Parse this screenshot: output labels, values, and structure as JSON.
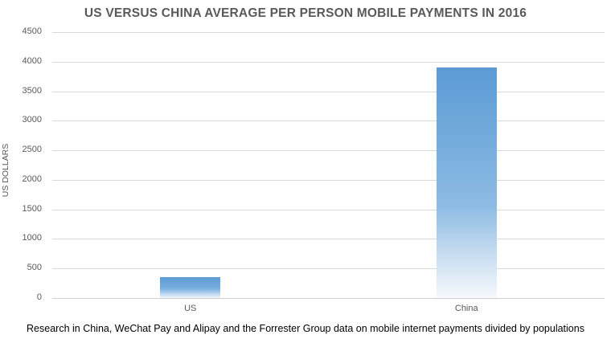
{
  "chart_data": {
    "type": "bar",
    "title": "US VERSUS CHINA AVERAGE PER PERSON MOBILE PAYMENTS IN 2016",
    "xlabel": "",
    "ylabel": "US DOLLARS",
    "categories": [
      "US",
      "China"
    ],
    "values": [
      350,
      3900
    ],
    "ylim": [
      0,
      4500
    ],
    "yticks": [
      0,
      500,
      1000,
      1500,
      2000,
      2500,
      3000,
      3500,
      4000,
      4500
    ],
    "grid": true,
    "legend": "none",
    "bar_color": "#5b9bd5",
    "bar_fill": "vertical gradient fading to white at bottom",
    "caption": "Research in China, WeChat Pay and Alipay and the Forrester Group data on mobile internet payments divided by populations"
  }
}
